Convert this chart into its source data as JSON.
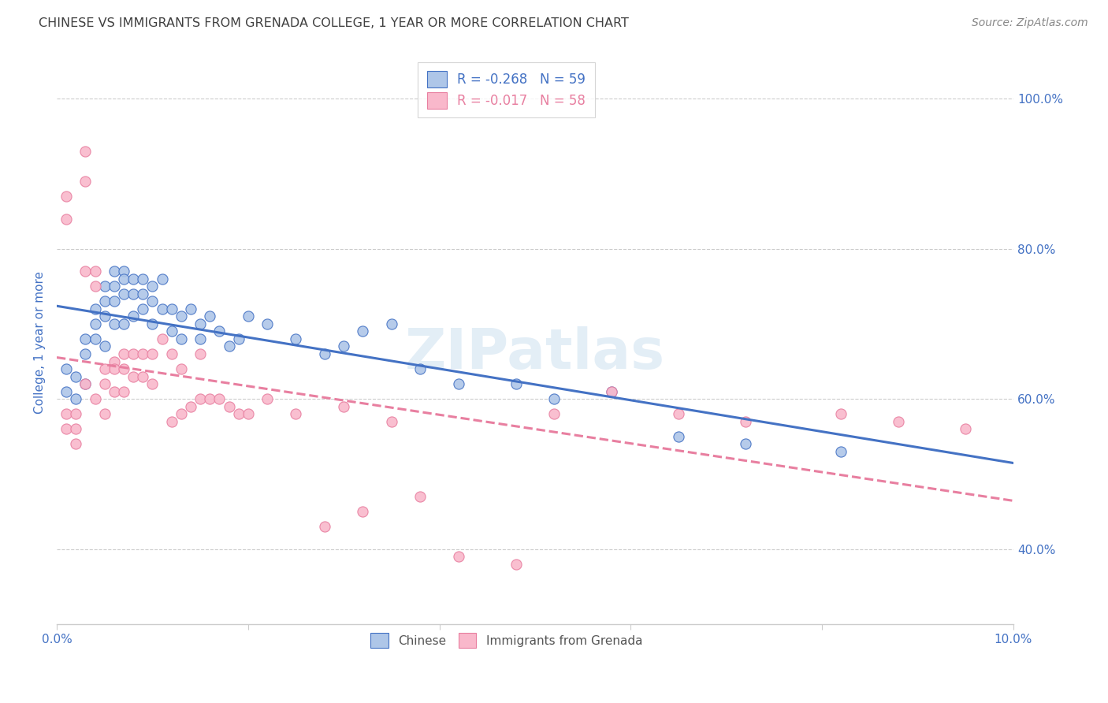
{
  "title": "CHINESE VS IMMIGRANTS FROM GRENADA COLLEGE, 1 YEAR OR MORE CORRELATION CHART",
  "source": "Source: ZipAtlas.com",
  "ylabel": "College, 1 year or more",
  "xlim": [
    0.0,
    0.1
  ],
  "ylim": [
    0.3,
    1.05
  ],
  "xticks": [
    0.0,
    0.02,
    0.04,
    0.06,
    0.08,
    0.1
  ],
  "xticklabels": [
    "0.0%",
    "",
    "",
    "",
    "",
    "10.0%"
  ],
  "ytick_positions": [
    0.4,
    0.6,
    0.8,
    1.0
  ],
  "ytick_labels": [
    "40.0%",
    "60.0%",
    "80.0%",
    "100.0%"
  ],
  "watermark": "ZIPatlas",
  "legend_blue_label": "Chinese",
  "legend_pink_label": "Immigrants from Grenada",
  "blue_R": "R = -0.268",
  "blue_N": "N = 59",
  "pink_R": "R = -0.017",
  "pink_N": "N = 58",
  "blue_color": "#aec6e8",
  "pink_color": "#f9b8cb",
  "blue_edge_color": "#4472c4",
  "pink_edge_color": "#e87fa0",
  "blue_line_color": "#4472c4",
  "pink_line_color": "#e87fa0",
  "grid_color": "#cccccc",
  "background_color": "#ffffff",
  "title_color": "#404040",
  "axis_label_color": "#4472c4",
  "source_color": "#888888",
  "blue_scatter_x": [
    0.001,
    0.001,
    0.002,
    0.002,
    0.003,
    0.003,
    0.003,
    0.004,
    0.004,
    0.004,
    0.005,
    0.005,
    0.005,
    0.005,
    0.006,
    0.006,
    0.006,
    0.006,
    0.007,
    0.007,
    0.007,
    0.007,
    0.008,
    0.008,
    0.008,
    0.009,
    0.009,
    0.009,
    0.01,
    0.01,
    0.01,
    0.011,
    0.011,
    0.012,
    0.012,
    0.013,
    0.013,
    0.014,
    0.015,
    0.015,
    0.016,
    0.017,
    0.018,
    0.019,
    0.02,
    0.022,
    0.025,
    0.028,
    0.03,
    0.032,
    0.035,
    0.038,
    0.042,
    0.048,
    0.052,
    0.058,
    0.065,
    0.072,
    0.082
  ],
  "blue_scatter_y": [
    0.64,
    0.61,
    0.63,
    0.6,
    0.68,
    0.66,
    0.62,
    0.72,
    0.7,
    0.68,
    0.75,
    0.73,
    0.71,
    0.67,
    0.77,
    0.75,
    0.73,
    0.7,
    0.77,
    0.76,
    0.74,
    0.7,
    0.76,
    0.74,
    0.71,
    0.76,
    0.74,
    0.72,
    0.75,
    0.73,
    0.7,
    0.76,
    0.72,
    0.72,
    0.69,
    0.71,
    0.68,
    0.72,
    0.7,
    0.68,
    0.71,
    0.69,
    0.67,
    0.68,
    0.71,
    0.7,
    0.68,
    0.66,
    0.67,
    0.69,
    0.7,
    0.64,
    0.62,
    0.62,
    0.6,
    0.61,
    0.55,
    0.54,
    0.53
  ],
  "pink_scatter_x": [
    0.001,
    0.001,
    0.001,
    0.001,
    0.002,
    0.002,
    0.002,
    0.003,
    0.003,
    0.003,
    0.003,
    0.004,
    0.004,
    0.004,
    0.005,
    0.005,
    0.005,
    0.006,
    0.006,
    0.006,
    0.007,
    0.007,
    0.007,
    0.008,
    0.008,
    0.009,
    0.009,
    0.01,
    0.01,
    0.011,
    0.012,
    0.012,
    0.013,
    0.013,
    0.014,
    0.015,
    0.015,
    0.016,
    0.017,
    0.018,
    0.019,
    0.02,
    0.022,
    0.025,
    0.028,
    0.03,
    0.032,
    0.035,
    0.038,
    0.042,
    0.048,
    0.052,
    0.058,
    0.065,
    0.072,
    0.082,
    0.088,
    0.095
  ],
  "pink_scatter_y": [
    0.87,
    0.84,
    0.58,
    0.56,
    0.58,
    0.56,
    0.54,
    0.93,
    0.89,
    0.77,
    0.62,
    0.77,
    0.75,
    0.6,
    0.64,
    0.62,
    0.58,
    0.65,
    0.64,
    0.61,
    0.66,
    0.64,
    0.61,
    0.66,
    0.63,
    0.66,
    0.63,
    0.66,
    0.62,
    0.68,
    0.66,
    0.57,
    0.64,
    0.58,
    0.59,
    0.66,
    0.6,
    0.6,
    0.6,
    0.59,
    0.58,
    0.58,
    0.6,
    0.58,
    0.43,
    0.59,
    0.45,
    0.57,
    0.47,
    0.39,
    0.38,
    0.58,
    0.61,
    0.58,
    0.57,
    0.58,
    0.57,
    0.56
  ]
}
